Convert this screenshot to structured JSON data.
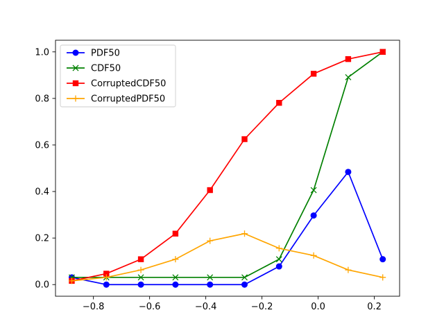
{
  "chart_data": {
    "type": "line",
    "title": "",
    "xlabel": "",
    "ylabel": "",
    "xlim": [
      -0.935,
      0.29
    ],
    "ylim": [
      -0.05,
      1.05
    ],
    "xticks": [
      -0.8,
      -0.6,
      -0.4,
      -0.2,
      0.0,
      0.2
    ],
    "xtick_labels": [
      "−0.8",
      "−0.6",
      "−0.4",
      "−0.2",
      "0.0",
      "0.2"
    ],
    "yticks": [
      0.0,
      0.2,
      0.4,
      0.6,
      0.8,
      1.0
    ],
    "ytick_labels": [
      "0.0",
      "0.2",
      "0.4",
      "0.6",
      "0.8",
      "1.0"
    ],
    "grid": false,
    "legend_position": "top-left",
    "x": [
      -0.877,
      -0.754,
      -0.631,
      -0.508,
      -0.385,
      -0.262,
      -0.139,
      -0.016,
      0.107,
      0.23
    ],
    "series": [
      {
        "name": "PDF50",
        "color": "#0000ff",
        "marker": "circle",
        "values": [
          0.031,
          0.0,
          0.0,
          0.0,
          0.0,
          0.0,
          0.078,
          0.297,
          0.484,
          0.109
        ]
      },
      {
        "name": "CDF50",
        "color": "#008000",
        "marker": "x",
        "values": [
          0.031,
          0.031,
          0.031,
          0.031,
          0.031,
          0.031,
          0.109,
          0.406,
          0.891,
          1.0
        ]
      },
      {
        "name": "CorruptedCDF50",
        "color": "#ff0000",
        "marker": "square",
        "values": [
          0.016,
          0.047,
          0.109,
          0.219,
          0.406,
          0.625,
          0.781,
          0.906,
          0.969,
          1.0
        ]
      },
      {
        "name": "CorruptedPDF50",
        "color": "#ffa500",
        "marker": "plus",
        "values": [
          0.016,
          0.031,
          0.063,
          0.109,
          0.188,
          0.219,
          0.156,
          0.125,
          0.063,
          0.031
        ]
      }
    ]
  }
}
